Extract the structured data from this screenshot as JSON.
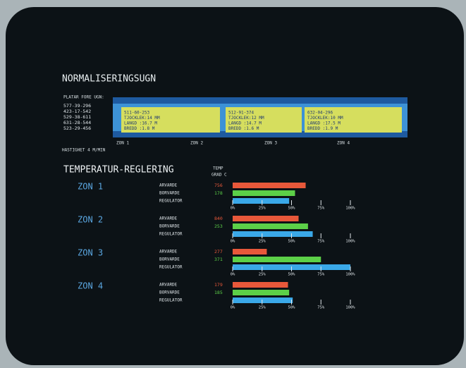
{
  "header": {
    "title": "NORMALISERINGSUGN"
  },
  "queue": {
    "label": "PLATAR FORE UGN:",
    "plates": [
      "577-39-296",
      "423-17-542",
      "529-38-611",
      "631-28-544",
      "523-29-456"
    ]
  },
  "furnace": {
    "slabs": [
      {
        "lines": [
          "511-60-253",
          "TJOCKLEK:14 MM",
          "LANGD :16.7 M",
          "BREDD :1.8 M"
        ]
      },
      {
        "lines": [
          "512-91-374",
          "TJOCKLEK:12 MM",
          "LANGD :14.7 M",
          "BREDD :1.6 M"
        ]
      },
      {
        "lines": [
          "632-04-296",
          "TJOCKLEK:10 MM",
          "LANGD :17.5 M",
          "BREDD :1.9 M"
        ]
      }
    ],
    "zones": [
      "ZON 1",
      "ZON 2",
      "ZON 3",
      "ZON 4"
    ],
    "speed": "HASTIGHET  4 M/MIN"
  },
  "temperature": {
    "title": "TEMPERATUR-REGLERING",
    "unit_label": [
      "TEMP",
      "GRAD C"
    ],
    "row_labels": [
      "ARVARDE",
      "BORVARDE",
      "REGULATOR"
    ],
    "colors": [
      "#e8583a",
      "#5cd048",
      "#3aa8e8"
    ],
    "xlim": [
      0,
      100
    ],
    "xticks": [
      {
        "value": 0,
        "label": "0%"
      },
      {
        "value": 25,
        "label": "25%"
      },
      {
        "value": 50,
        "label": "50%"
      },
      {
        "value": 75,
        "label": "75%"
      },
      {
        "value": 100,
        "label": "100%"
      }
    ],
    "zones": [
      {
        "name": "ZON 1",
        "readings": [
          "756",
          "178"
        ],
        "bars": [
          62,
          53,
          48
        ]
      },
      {
        "name": "ZON 2",
        "readings": [
          "840",
          "253"
        ],
        "bars": [
          56,
          64,
          68
        ]
      },
      {
        "name": "ZON 3",
        "readings": [
          "277",
          "371"
        ],
        "bars": [
          29,
          75,
          100
        ]
      },
      {
        "name": "ZON 4",
        "readings": [
          "179",
          "185"
        ],
        "bars": [
          47,
          48,
          51
        ]
      }
    ]
  }
}
